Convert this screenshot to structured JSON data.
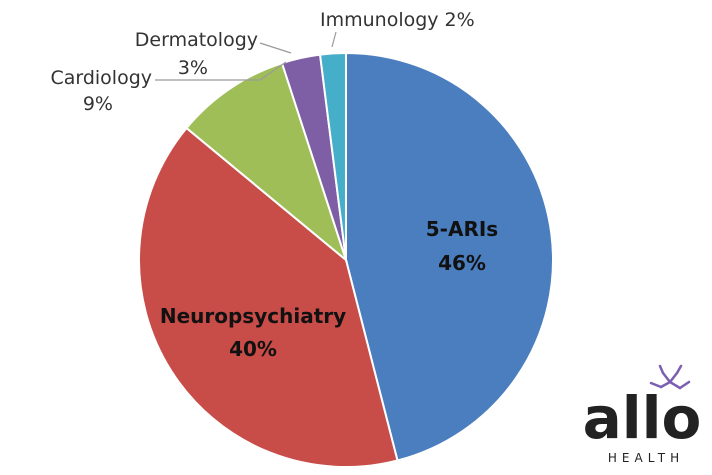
{
  "chart_data": {
    "type": "pie",
    "title": "",
    "slices": [
      {
        "label": "5-ARIs",
        "value": 46,
        "display_value": "46%",
        "color": "#4a7ebf",
        "label_style": "inside"
      },
      {
        "label": "Neuropsychiatry",
        "value": 40,
        "display_value": "40%",
        "color": "#c84c47",
        "label_style": "inside"
      },
      {
        "label": "Cardiology",
        "value": 9,
        "display_value": "9%",
        "color": "#9fbe58",
        "label_style": "outside"
      },
      {
        "label": "Dermatology",
        "value": 3,
        "display_value": "3%",
        "color": "#7e5fa5",
        "label_style": "outside"
      },
      {
        "label": "Immunology",
        "value": 2,
        "display_value": "2%",
        "color": "#45aec9",
        "label_style": "outside"
      }
    ]
  },
  "logo": {
    "wordmark": "allo",
    "subtext": "HEALTH"
  }
}
